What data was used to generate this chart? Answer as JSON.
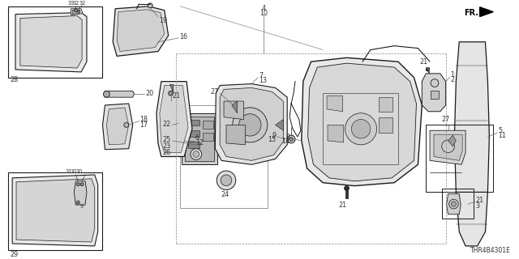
{
  "bg_color": "#ffffff",
  "line_color": "#1a1a1a",
  "label_color": "#333333",
  "diagram_id": "THR4B4301E",
  "fs": 5.8,
  "lw_main": 0.7,
  "lw_thin": 0.4,
  "lw_med": 0.9
}
